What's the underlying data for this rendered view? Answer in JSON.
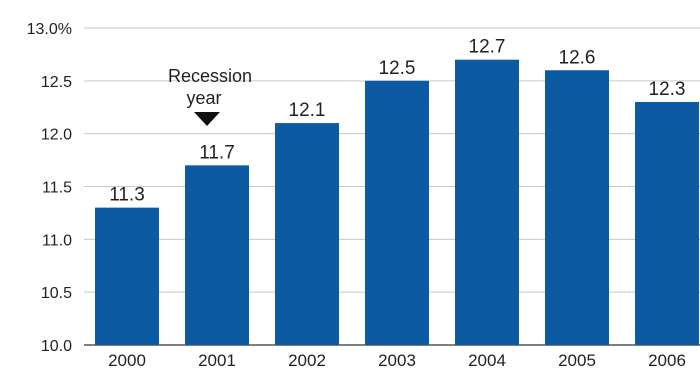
{
  "chart_data": {
    "type": "bar",
    "title": "",
    "xlabel": "",
    "ylabel": "",
    "categories": [
      "2000",
      "2001",
      "2002",
      "2003",
      "2004",
      "2005",
      "2006"
    ],
    "values": [
      11.3,
      11.7,
      12.1,
      12.5,
      12.7,
      12.6,
      12.3
    ],
    "value_labels": [
      "11.3",
      "11.7",
      "12.1",
      "12.5",
      "12.7",
      "12.6",
      "12.3"
    ],
    "ylim": [
      10.0,
      13.0
    ],
    "yticks": [
      10.0,
      10.5,
      11.0,
      11.5,
      12.0,
      12.5,
      13.0
    ],
    "ytick_labels": [
      "10.0",
      "10.5",
      "11.0",
      "11.5",
      "12.0",
      "12.5",
      "13.0%"
    ],
    "grid": true,
    "legend": "none",
    "bar_color": "#0b5aa2",
    "grid_color": "#c8c8c8",
    "annotation": {
      "category": "2001",
      "line1": "Recession",
      "line2": "year"
    }
  }
}
